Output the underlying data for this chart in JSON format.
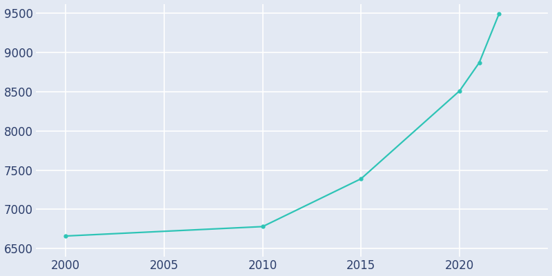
{
  "years": [
    2000,
    2010,
    2015,
    2020,
    2021,
    2022
  ],
  "population": [
    6660,
    6780,
    7390,
    8510,
    8870,
    9490
  ],
  "line_color": "#2ec4b6",
  "marker_color": "#2ec4b6",
  "background_color": "#e3e9f3",
  "grid_color": "#ffffff",
  "tick_label_color": "#2c3e6b",
  "ylim": [
    6400,
    9620
  ],
  "xlim": [
    1998.5,
    2024.5
  ],
  "yticks": [
    6500,
    7000,
    7500,
    8000,
    8500,
    9000,
    9500
  ],
  "xticks": [
    2000,
    2005,
    2010,
    2015,
    2020
  ],
  "linewidth": 1.6,
  "markersize": 3.5,
  "tick_labelsize": 12
}
